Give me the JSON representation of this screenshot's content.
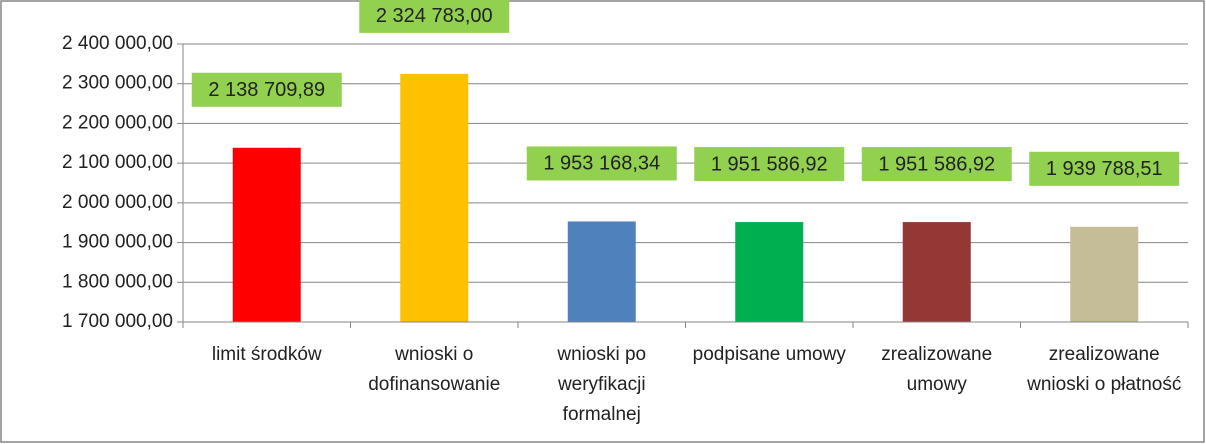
{
  "chart_data": {
    "type": "bar",
    "categories": [
      "limit środków",
      "wnioski o dofinansowanie",
      "wnioski po weryfikacji formalnej",
      "podpisane umowy",
      "zrealizowane umowy",
      "zrealizowane wnioski o płatność"
    ],
    "values": [
      2138709.89,
      2324783.0,
      1953168.34,
      1951586.92,
      1951586.92,
      1939788.51
    ],
    "value_labels": [
      "2 138 709,89",
      "2 324 783,00",
      "1 953 168,34",
      "1 951 586,92",
      "1 951 586,92",
      "1 939 788,51"
    ],
    "colors": [
      "#ff0000",
      "#ffc000",
      "#4f81bd",
      "#00b050",
      "#953735",
      "#c4bd97"
    ],
    "label_color": "#92d050",
    "ylim": [
      1700000,
      2400000
    ],
    "yticks": [
      {
        "value": 1700000,
        "label": "1 700 000,00"
      },
      {
        "value": 1800000,
        "label": "1 800 000,00"
      },
      {
        "value": 1900000,
        "label": "1 900 000,00"
      },
      {
        "value": 2000000,
        "label": "2 000 000,00"
      },
      {
        "value": 2100000,
        "label": "2 100 000,00"
      },
      {
        "value": 2200000,
        "label": "2 200 000,00"
      },
      {
        "value": 2300000,
        "label": "2 300 000,00"
      },
      {
        "value": 2400000,
        "label": "2 400 000,00"
      }
    ],
    "grid": true
  }
}
